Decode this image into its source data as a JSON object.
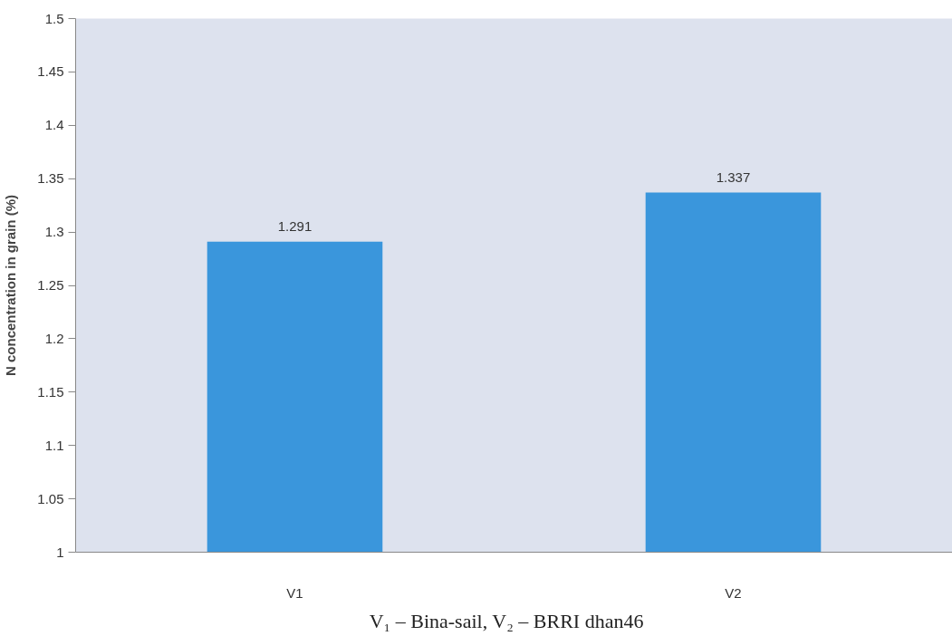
{
  "chart_data": {
    "type": "bar",
    "ylabel": "N concentration in grain (%)",
    "categories": [
      "V1",
      "V2"
    ],
    "values": [
      1.291,
      1.337
    ],
    "color": "#3a96dc",
    "ylim": [
      1,
      1.5
    ],
    "yticks": [
      1,
      1.05,
      1.1,
      1.15,
      1.2,
      1.25,
      1.3,
      1.35,
      1.4,
      1.45,
      1.5
    ],
    "grid": false,
    "data_labels": true,
    "annotations": [
      "V₁ – Bina-sail,    V₂ – BRRI dhan46"
    ]
  }
}
